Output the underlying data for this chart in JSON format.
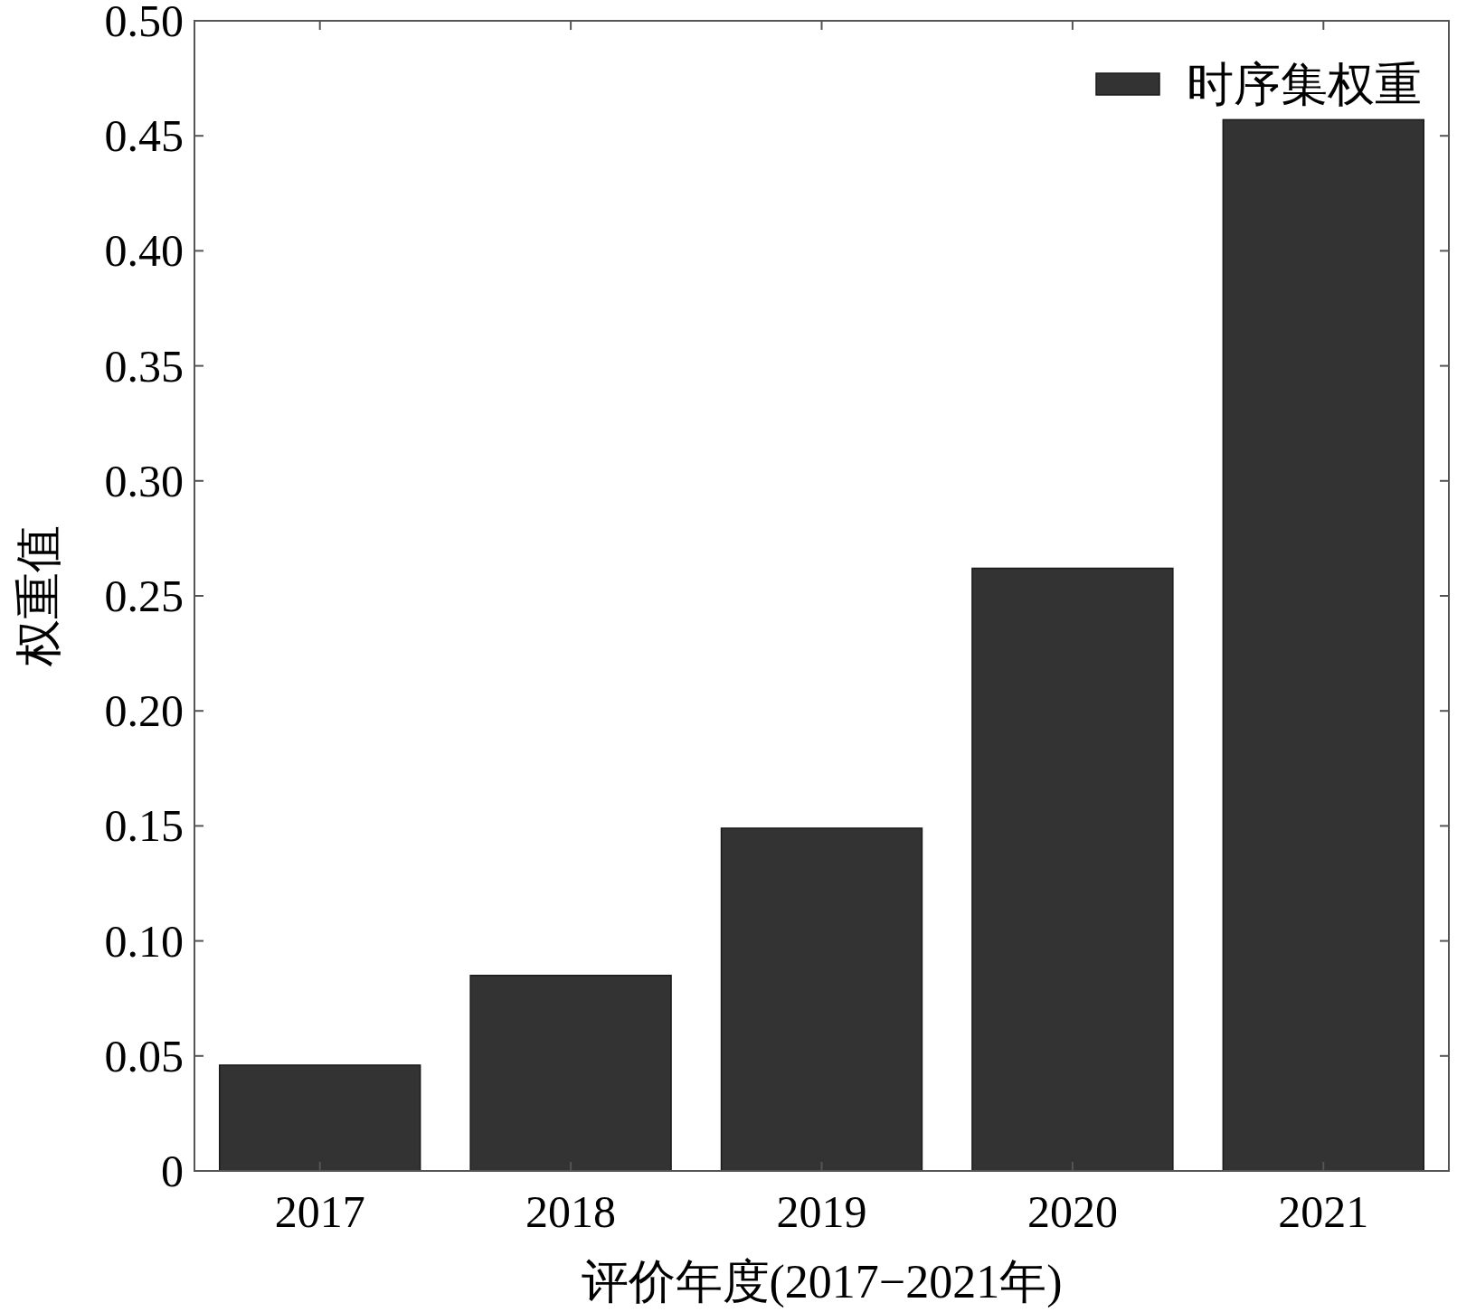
{
  "chart_data": {
    "type": "bar",
    "xlabel": "评价年度(2017−2021年)",
    "ylabel": "权重值",
    "categories": [
      "2017",
      "2018",
      "2019",
      "2020",
      "2021"
    ],
    "series": [
      {
        "name": "时序集权重",
        "color": "#333333",
        "values": [
          0.046,
          0.085,
          0.149,
          0.262,
          0.457
        ]
      }
    ],
    "ylim": [
      0,
      0.5
    ],
    "yticks": [
      0,
      0.05,
      {
        "value": 0.1,
        "label": "0.10"
      },
      0.15,
      {
        "value": 0.2,
        "label": "0.20"
      },
      0.25,
      {
        "value": 0.3,
        "label": "0.30"
      },
      0.35,
      {
        "value": 0.4,
        "label": "0.40"
      },
      0.45,
      {
        "value": 0.5,
        "label": "0.50"
      }
    ],
    "legend": "top right",
    "grid": false
  }
}
